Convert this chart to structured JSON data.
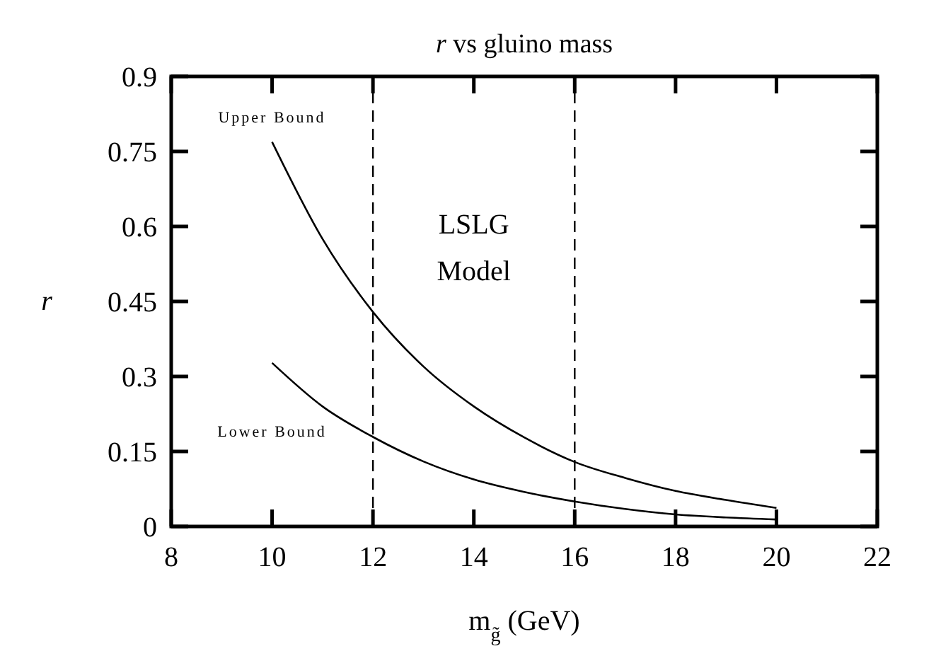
{
  "chart_data": {
    "type": "line",
    "title": "r vs gluino mass",
    "xlabel": "m$_{g̃}$ (GeV)",
    "ylabel": "r",
    "x": [
      10,
      11,
      12,
      13,
      14,
      15,
      16,
      17,
      18,
      19,
      20
    ],
    "series": [
      {
        "name": "Upper Bound",
        "color": "#000000",
        "values": [
          0.769,
          0.575,
          0.429,
          0.32,
          0.24,
          0.178,
          0.129,
          0.097,
          0.071,
          0.053,
          0.037
        ]
      },
      {
        "name": "Lower Bound",
        "color": "#000000",
        "values": [
          0.327,
          0.24,
          0.179,
          0.13,
          0.094,
          0.069,
          0.05,
          0.035,
          0.024,
          0.018,
          0.014
        ]
      }
    ],
    "xlim": [
      8,
      22
    ],
    "xticks": [
      8,
      10,
      12,
      14,
      16,
      18,
      20,
      22
    ],
    "ylim": [
      0,
      0.9
    ],
    "yticks": [
      0,
      0.15,
      0.3,
      0.45,
      0.6,
      0.75,
      0.9
    ],
    "ref_lines": [
      {
        "axis": "x",
        "value": 12,
        "line_style": "dashed",
        "color": "#000000"
      },
      {
        "axis": "x",
        "value": 16,
        "line_style": "dashed",
        "color": "#000000"
      }
    ],
    "annotations": [
      "LSLG Model"
    ],
    "grid": false,
    "legend": "top left",
    "marker": "none",
    "line_style": "solid"
  }
}
